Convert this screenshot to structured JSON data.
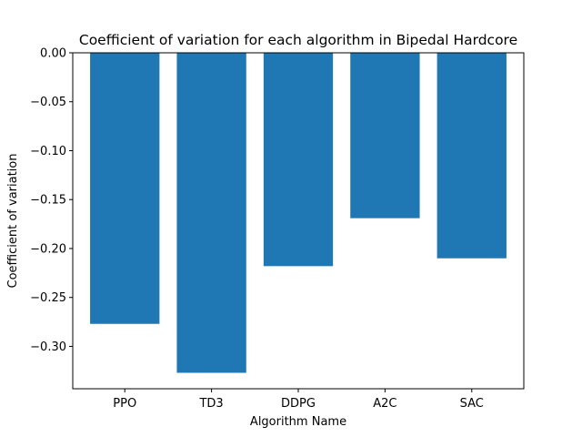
{
  "chart_data": {
    "type": "bar",
    "title": "Coefficient of variation for each algorithm in Bipedal Hardcore",
    "xlabel": "Algorithm Name",
    "ylabel": "Coefficient of variation",
    "categories": [
      "PPO",
      "TD3",
      "DDPG",
      "A2C",
      "SAC"
    ],
    "values": [
      -0.277,
      -0.327,
      -0.218,
      -0.169,
      -0.21
    ],
    "ylim": [
      -0.3433,
      0.0
    ],
    "yticks": [
      0.0,
      -0.05,
      -0.1,
      -0.15,
      -0.2,
      -0.25,
      -0.3
    ],
    "ytick_labels": [
      "0.00",
      "−0.05",
      "−0.10",
      "−0.15",
      "−0.20",
      "−0.25",
      "−0.30"
    ],
    "bar_color": "#1f77b4",
    "grid": false,
    "legend": "none"
  }
}
